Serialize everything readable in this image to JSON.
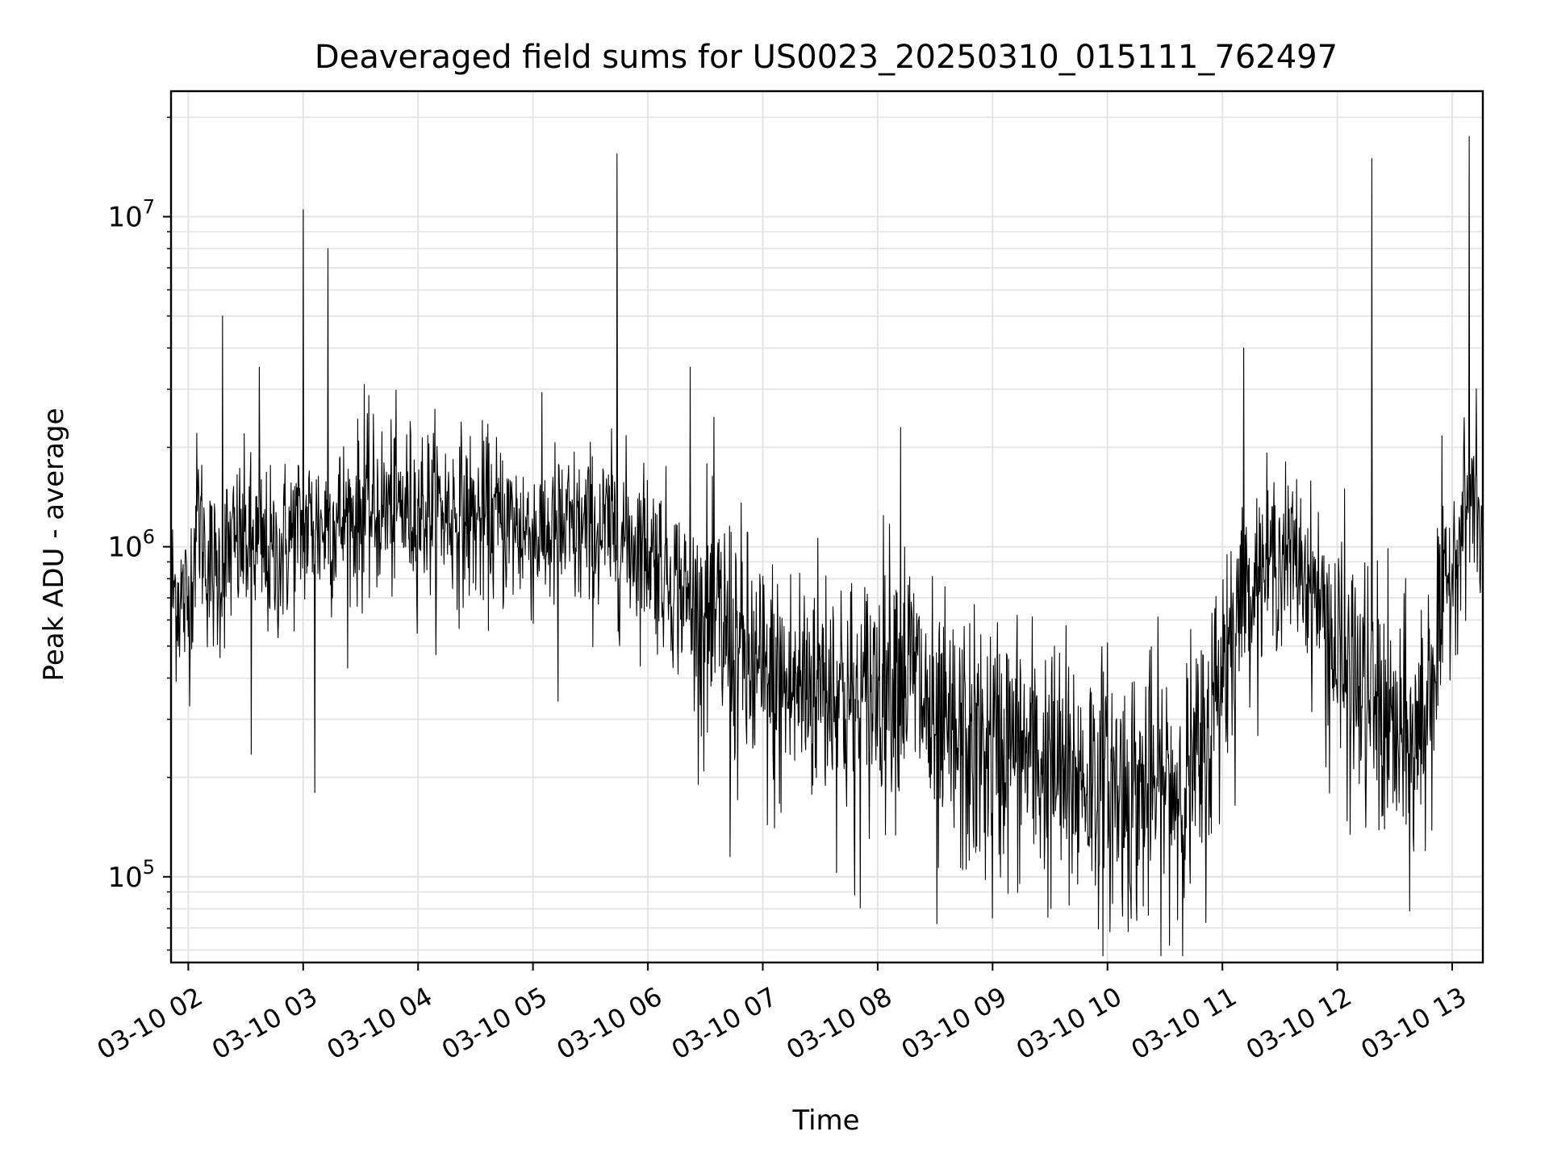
{
  "chart_data": {
    "type": "line",
    "title": "Deaveraged field sums for US0023_20250310_015111_762497",
    "xlabel": "Time",
    "ylabel": "Peak ADU - average",
    "y_scale": "log",
    "ylim": [
      55000,
      24000000
    ],
    "xlim": [
      "2025-03-10 01:51",
      "2025-03-10 13:16"
    ],
    "grid": true,
    "line_color": "#000000",
    "x_ticks": [
      {
        "value": "2025-03-10 02:00",
        "label": "03-10 02"
      },
      {
        "value": "2025-03-10 03:00",
        "label": "03-10 03"
      },
      {
        "value": "2025-03-10 04:00",
        "label": "03-10 04"
      },
      {
        "value": "2025-03-10 05:00",
        "label": "03-10 05"
      },
      {
        "value": "2025-03-10 06:00",
        "label": "03-10 06"
      },
      {
        "value": "2025-03-10 07:00",
        "label": "03-10 07"
      },
      {
        "value": "2025-03-10 08:00",
        "label": "03-10 08"
      },
      {
        "value": "2025-03-10 09:00",
        "label": "03-10 09"
      },
      {
        "value": "2025-03-10 10:00",
        "label": "03-10 10"
      },
      {
        "value": "2025-03-10 11:00",
        "label": "03-10 11"
      },
      {
        "value": "2025-03-10 12:00",
        "label": "03-10 12"
      },
      {
        "value": "2025-03-10 13:00",
        "label": "03-10 13"
      }
    ],
    "y_ticks": [
      {
        "value": 100000,
        "base": "10",
        "exp": "5"
      },
      {
        "value": 1000000,
        "base": "10",
        "exp": "6"
      },
      {
        "value": 10000000,
        "base": "10",
        "exp": "7"
      }
    ],
    "series": [
      {
        "points": [
          [
            "2025-03-10 01:51",
            750000
          ],
          [
            "2025-03-10 01:56",
            700000
          ],
          [
            "2025-03-10 02:00",
            650000
          ],
          [
            "2025-03-10 02:05",
            1300000
          ],
          [
            "2025-03-10 02:10",
            900000
          ],
          [
            "2025-03-10 02:15",
            800000
          ],
          [
            "2025-03-10 02:20",
            950000
          ],
          [
            "2025-03-10 02:25",
            1000000
          ],
          [
            "2025-03-10 02:30",
            1050000
          ],
          [
            "2025-03-10 02:35",
            1000000
          ],
          [
            "2025-03-10 02:40",
            950000
          ],
          [
            "2025-03-10 02:45",
            900000
          ],
          [
            "2025-03-10 02:50",
            1000000
          ],
          [
            "2025-03-10 02:55",
            1100000
          ],
          [
            "2025-03-10 03:00",
            1150000
          ],
          [
            "2025-03-10 03:10",
            1150000
          ],
          [
            "2025-03-10 03:20",
            1200000
          ],
          [
            "2025-03-10 03:30",
            1250000
          ],
          [
            "2025-03-10 03:40",
            1300000
          ],
          [
            "2025-03-10 03:50",
            1300000
          ],
          [
            "2025-03-10 04:00",
            1300000
          ],
          [
            "2025-03-10 04:10",
            1300000
          ],
          [
            "2025-03-10 04:20",
            1250000
          ],
          [
            "2025-03-10 04:30",
            1200000
          ],
          [
            "2025-03-10 04:40",
            1200000
          ],
          [
            "2025-03-10 04:50",
            1150000
          ],
          [
            "2025-03-10 05:00",
            1100000
          ],
          [
            "2025-03-10 05:10",
            1100000
          ],
          [
            "2025-03-10 05:20",
            1100000
          ],
          [
            "2025-03-10 05:30",
            1100000
          ],
          [
            "2025-03-10 05:40",
            1100000
          ],
          [
            "2025-03-10 05:50",
            1050000
          ],
          [
            "2025-03-10 06:00",
            1000000
          ],
          [
            "2025-03-10 06:10",
            850000
          ],
          [
            "2025-03-10 06:20",
            700000
          ],
          [
            "2025-03-10 06:30",
            600000
          ],
          [
            "2025-03-10 06:40",
            550000
          ],
          [
            "2025-03-10 06:50",
            450000
          ],
          [
            "2025-03-10 07:00",
            380000
          ],
          [
            "2025-03-10 07:10",
            360000
          ],
          [
            "2025-03-10 07:20",
            380000
          ],
          [
            "2025-03-10 07:30",
            400000
          ],
          [
            "2025-03-10 07:40",
            380000
          ],
          [
            "2025-03-10 07:50",
            300000
          ],
          [
            "2025-03-10 08:00",
            400000
          ],
          [
            "2025-03-10 08:10",
            450000
          ],
          [
            "2025-03-10 08:20",
            400000
          ],
          [
            "2025-03-10 08:30",
            260000
          ],
          [
            "2025-03-10 08:40",
            250000
          ],
          [
            "2025-03-10 08:50",
            240000
          ],
          [
            "2025-03-10 09:00",
            240000
          ],
          [
            "2025-03-10 09:10",
            250000
          ],
          [
            "2025-03-10 09:20",
            230000
          ],
          [
            "2025-03-10 09:30",
            210000
          ],
          [
            "2025-03-10 09:40",
            200000
          ],
          [
            "2025-03-10 09:50",
            200000
          ],
          [
            "2025-03-10 10:00",
            190000
          ],
          [
            "2025-03-10 10:10",
            180000
          ],
          [
            "2025-03-10 10:20",
            180000
          ],
          [
            "2025-03-10 10:30",
            185000
          ],
          [
            "2025-03-10 10:40",
            190000
          ],
          [
            "2025-03-10 10:50",
            220000
          ],
          [
            "2025-03-10 11:00",
            450000
          ],
          [
            "2025-03-10 11:10",
            700000
          ],
          [
            "2025-03-10 11:20",
            850000
          ],
          [
            "2025-03-10 11:30",
            950000
          ],
          [
            "2025-03-10 11:40",
            900000
          ],
          [
            "2025-03-10 11:50",
            700000
          ],
          [
            "2025-03-10 12:00",
            450000
          ],
          [
            "2025-03-10 12:10",
            380000
          ],
          [
            "2025-03-10 12:20",
            330000
          ],
          [
            "2025-03-10 12:30",
            260000
          ],
          [
            "2025-03-10 12:40",
            230000
          ],
          [
            "2025-03-10 12:50",
            450000
          ],
          [
            "2025-03-10 13:00",
            900000
          ],
          [
            "2025-03-10 13:10",
            1500000
          ],
          [
            "2025-03-10 13:16",
            1000000
          ]
        ],
        "spikes": [
          [
            "2025-03-10 02:18",
            5000000
          ],
          [
            "2025-03-10 02:37",
            3500000
          ],
          [
            "2025-03-10 03:00",
            10500000
          ],
          [
            "2025-03-10 03:13",
            8000000
          ],
          [
            "2025-03-10 03:32",
            3100000
          ],
          [
            "2025-03-10 05:44",
            15500000
          ],
          [
            "2025-03-10 06:22",
            3500000
          ],
          [
            "2025-03-10 08:12",
            2300000
          ],
          [
            "2025-03-10 11:11",
            4000000
          ],
          [
            "2025-03-10 12:18",
            15000000
          ],
          [
            "2025-03-10 13:09",
            17500000
          ]
        ],
        "dips": [
          [
            "2025-03-10 02:33",
            235000
          ],
          [
            "2025-03-10 03:06",
            180000
          ],
          [
            "2025-03-10 05:13",
            340000
          ],
          [
            "2025-03-10 06:43",
            115000
          ],
          [
            "2025-03-10 07:48",
            88000
          ],
          [
            "2025-03-10 08:31",
            72000
          ],
          [
            "2025-03-10 09:00",
            75000
          ],
          [
            "2025-03-10 09:40",
            82000
          ],
          [
            "2025-03-10 12:46",
            120000
          ]
        ]
      }
    ]
  }
}
